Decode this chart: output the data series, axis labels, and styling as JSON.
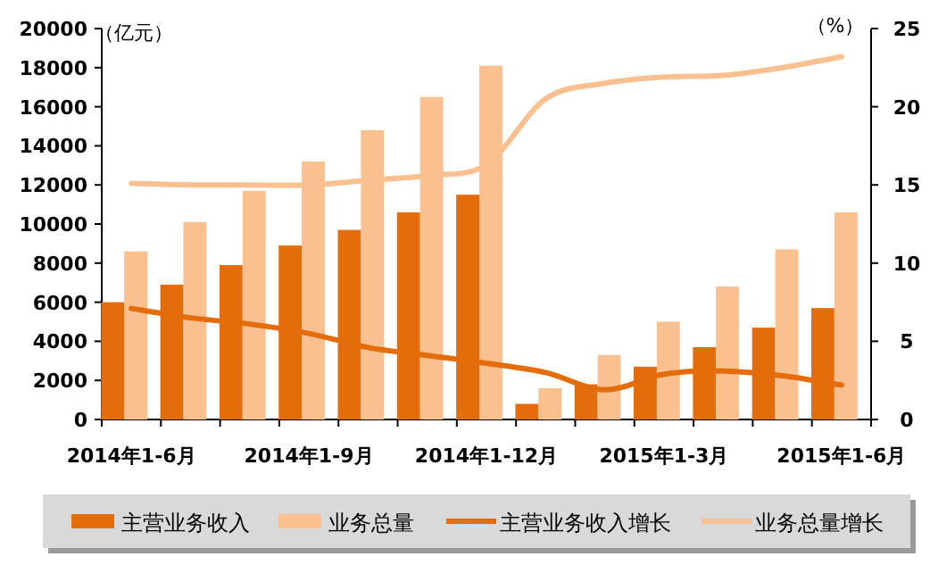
{
  "chart_data": {
    "type": "bar",
    "categories": [
      "2014年1-6月",
      null,
      null,
      "2014年1-9月",
      null,
      null,
      "2014年1-12月",
      null,
      null,
      "2015年1-3月",
      null,
      null,
      "2015年1-6月"
    ],
    "series": [
      {
        "name": "主营业务收入",
        "color": "#e46c0a",
        "values": [
          6000,
          6900,
          7900,
          8900,
          9700,
          10600,
          11500,
          800,
          1800,
          2700,
          3700,
          4700,
          5700
        ]
      },
      {
        "name": "业务总量",
        "color": "#fac090",
        "values": [
          8600,
          10100,
          11700,
          13200,
          14800,
          16500,
          18100,
          1600,
          3300,
          5000,
          6800,
          8700,
          10600
        ]
      },
      {
        "name": "主营业务收入增长",
        "type": "line",
        "axis": "y2",
        "color": "#e46c0a",
        "values": [
          7.1,
          6.5,
          6.1,
          5.5,
          4.6,
          4.1,
          3.6,
          3.0,
          1.9,
          2.9,
          3.1,
          2.8,
          2.2
        ]
      },
      {
        "name": "业务总量增长",
        "type": "line",
        "axis": "y2",
        "color": "#fac090",
        "values": [
          15.1,
          15.0,
          15.0,
          15.0,
          15.3,
          15.6,
          16.3,
          20.5,
          21.5,
          21.9,
          22.0,
          22.5,
          23.2
        ]
      }
    ],
    "ylabel": "（亿元）",
    "y2label": "（%）",
    "ylim": [
      0,
      20000
    ],
    "yticks": [
      0,
      2000,
      4000,
      6000,
      8000,
      10000,
      12000,
      14000,
      16000,
      18000,
      20000
    ],
    "y2lim": [
      0,
      25
    ],
    "y2ticks": [
      0,
      5,
      10,
      15,
      20,
      25
    ],
    "legend": "bottom"
  }
}
